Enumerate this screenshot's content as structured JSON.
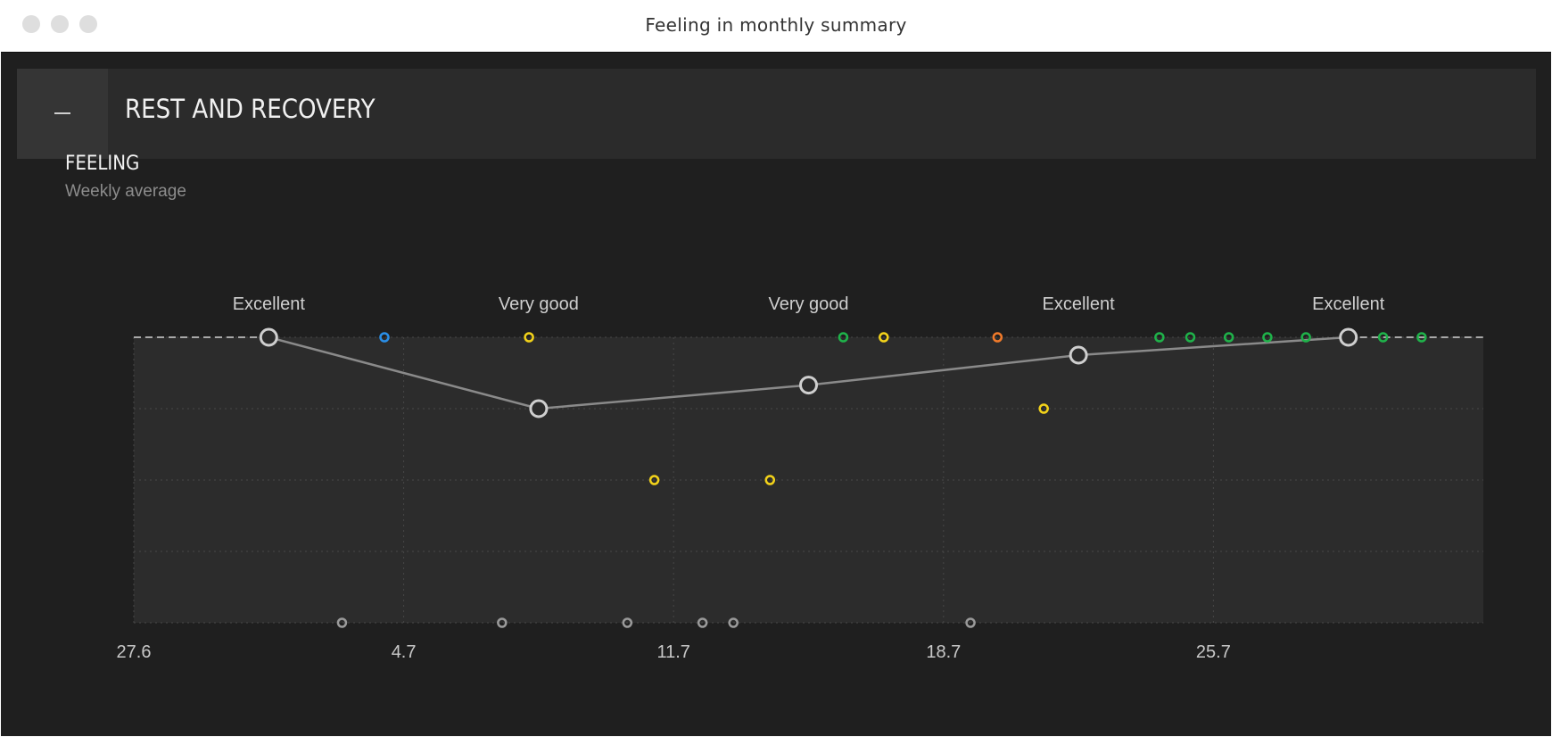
{
  "window": {
    "title": "Feeling in monthly summary"
  },
  "section": {
    "title": "REST AND RECOVERY",
    "collapse_icon": "minus-icon"
  },
  "chart": {
    "title": "FEELING",
    "subtitle": "Weekly average"
  },
  "colors": {
    "background": "#1f1f1f",
    "plot_area": "#2c2c2c",
    "average_line": "#8a8a8a",
    "average_marker": "#cfcfcf",
    "blue": "#2a8ee6",
    "yellow": "#f2d21a",
    "green": "#1fb24a",
    "orange": "#f07a2a",
    "grey": "#9a9a9a"
  },
  "chart_data": {
    "type": "line",
    "x_tick_labels": [
      "27.6",
      "4.7",
      "11.7",
      "18.7",
      "25.7"
    ],
    "x_tick_days": [
      0,
      7,
      14,
      21,
      28
    ],
    "xlim": [
      0,
      35
    ],
    "levels": 4,
    "grid": true,
    "series": [
      {
        "points": [
          {
            "x": 3.5,
            "y": 4,
            "label": "Excellent"
          },
          {
            "x": 10.5,
            "y": 3,
            "label": "Very good"
          },
          {
            "x": 17.5,
            "y": 3.33,
            "label": "Very good"
          },
          {
            "x": 24.5,
            "y": 3.75,
            "label": "Excellent"
          },
          {
            "x": 31.5,
            "y": 4,
            "label": "Excellent"
          }
        ]
      },
      {
        "points": [
          {
            "x": 6.5,
            "y": 4,
            "color": "blue"
          },
          {
            "x": 10.25,
            "y": 4,
            "color": "yellow"
          },
          {
            "x": 18.4,
            "y": 4,
            "color": "green"
          },
          {
            "x": 19.45,
            "y": 4,
            "color": "yellow"
          },
          {
            "x": 22.4,
            "y": 4,
            "color": "orange"
          },
          {
            "x": 26.6,
            "y": 4,
            "color": "green"
          },
          {
            "x": 27.4,
            "y": 4,
            "color": "green"
          },
          {
            "x": 28.4,
            "y": 4,
            "color": "green"
          },
          {
            "x": 29.4,
            "y": 4,
            "color": "green"
          },
          {
            "x": 30.4,
            "y": 4,
            "color": "green"
          },
          {
            "x": 31.4,
            "y": 4,
            "color": "green"
          },
          {
            "x": 32.4,
            "y": 4,
            "color": "green"
          },
          {
            "x": 33.4,
            "y": 4,
            "color": "green"
          },
          {
            "x": 23.6,
            "y": 3,
            "color": "yellow"
          },
          {
            "x": 13.5,
            "y": 2,
            "color": "yellow"
          },
          {
            "x": 16.5,
            "y": 2,
            "color": "yellow"
          },
          {
            "x": 5.4,
            "y": 0,
            "color": "grey"
          },
          {
            "x": 9.55,
            "y": 0,
            "color": "grey"
          },
          {
            "x": 12.8,
            "y": 0,
            "color": "grey"
          },
          {
            "x": 14.75,
            "y": 0,
            "color": "grey"
          },
          {
            "x": 15.55,
            "y": 0,
            "color": "grey"
          },
          {
            "x": 21.7,
            "y": 0,
            "color": "grey"
          }
        ]
      }
    ]
  }
}
